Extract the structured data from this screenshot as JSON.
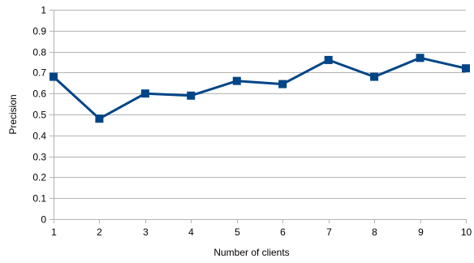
{
  "chart_data": {
    "type": "line",
    "title": "",
    "xlabel": "Number of clients",
    "ylabel": "Precision",
    "x": [
      1,
      2,
      3,
      4,
      5,
      6,
      7,
      8,
      9,
      10
    ],
    "xlim": [
      1,
      10
    ],
    "ylim": [
      0,
      1
    ],
    "yticks": [
      0,
      0.1,
      0.2,
      0.3,
      0.4,
      0.5,
      0.6,
      0.7,
      0.8,
      0.9,
      1
    ],
    "ytick_labels": [
      "0",
      "0.1",
      "0.2",
      "0.3",
      "0.4",
      "0.5",
      "0.6",
      "0.7",
      "0.8",
      "0.9",
      "1"
    ],
    "xtick_labels": [
      "1",
      "2",
      "3",
      "4",
      "5",
      "6",
      "7",
      "8",
      "9",
      "10"
    ],
    "grid": true,
    "legend": "none",
    "series": [
      {
        "color": "#004586",
        "marker": "square",
        "values": [
          0.68,
          0.48,
          0.6,
          0.59,
          0.66,
          0.645,
          0.76,
          0.68,
          0.77,
          0.72
        ]
      }
    ]
  }
}
